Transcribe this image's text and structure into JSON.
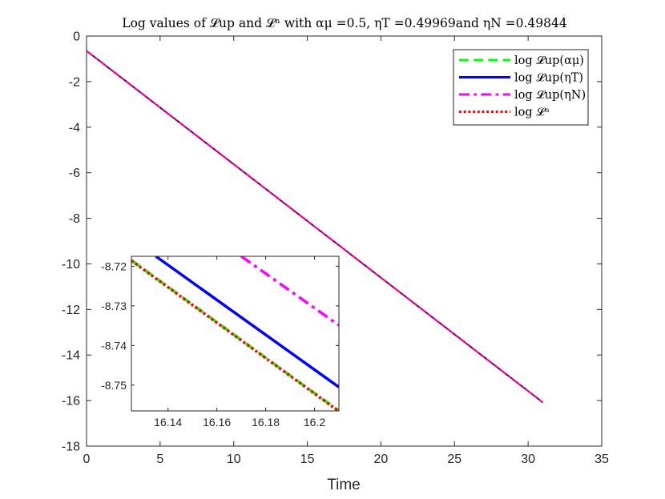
{
  "chart_data": [
    {
      "type": "line",
      "title": "Log values of 𝓛up and 𝓛ⁿ with αμ =0.5, ηT =0.49969and ηN =0.49844",
      "xlabel": "Time",
      "ylabel": "",
      "xlim": [
        0,
        35
      ],
      "ylim": [
        -18,
        0
      ],
      "xticks": [
        0,
        5,
        10,
        15,
        20,
        25,
        30,
        35
      ],
      "yticks": [
        0,
        -2,
        -4,
        -6,
        -8,
        -10,
        -12,
        -14,
        -16,
        -18
      ],
      "grid": false,
      "legend_position": "top-right",
      "series": [
        {
          "name": "log 𝓛up(αμ)",
          "color": "#00ff00",
          "style": "dashed",
          "x": [
            0,
            31
          ],
          "y": [
            -0.65,
            -16.08
          ]
        },
        {
          "name": "log 𝓛up(ηT)",
          "color": "#0000ff",
          "style": "solid",
          "x": [
            0,
            31
          ],
          "y": [
            -0.65,
            -16.08
          ]
        },
        {
          "name": "log 𝓛up(ηN)",
          "color": "#ff00ff",
          "style": "dashdot",
          "x": [
            0,
            31
          ],
          "y": [
            -0.65,
            -16.08
          ]
        },
        {
          "name": "log 𝓛ⁿ",
          "color": "#ff0000",
          "style": "dotted",
          "x": [
            0,
            31
          ],
          "y": [
            -0.65,
            -16.08
          ]
        }
      ]
    },
    {
      "type": "line",
      "title": "",
      "xlabel": "",
      "ylabel": "",
      "xlim": [
        16.125,
        16.21
      ],
      "ylim": [
        -8.7565,
        -8.7175
      ],
      "xticks": [
        16.14,
        16.16,
        16.18,
        16.2
      ],
      "yticks": [
        -8.72,
        -8.73,
        -8.74,
        -8.75
      ],
      "grid": false,
      "series": [
        {
          "name": "log 𝓛up(αμ)",
          "color": "#00ff00",
          "style": "dashed",
          "x": [
            16.125,
            16.21
          ],
          "y": [
            -8.7185,
            -8.7565
          ]
        },
        {
          "name": "log 𝓛up(ηT)",
          "color": "#0000ff",
          "style": "solid",
          "x": [
            16.135,
            16.21
          ],
          "y": [
            -8.7175,
            -8.7505
          ]
        },
        {
          "name": "log 𝓛up(ηN)",
          "color": "#ff00ff",
          "style": "dashdot",
          "x": [
            16.17,
            16.21
          ],
          "y": [
            -8.7175,
            -8.7349
          ]
        },
        {
          "name": "log 𝓛ⁿ",
          "color": "#ff0000",
          "style": "dotted",
          "x": [
            16.125,
            16.21
          ],
          "y": [
            -8.7186,
            -8.7566
          ]
        }
      ]
    }
  ],
  "colors": {
    "axis": "#262626",
    "background": "#ffffff"
  }
}
